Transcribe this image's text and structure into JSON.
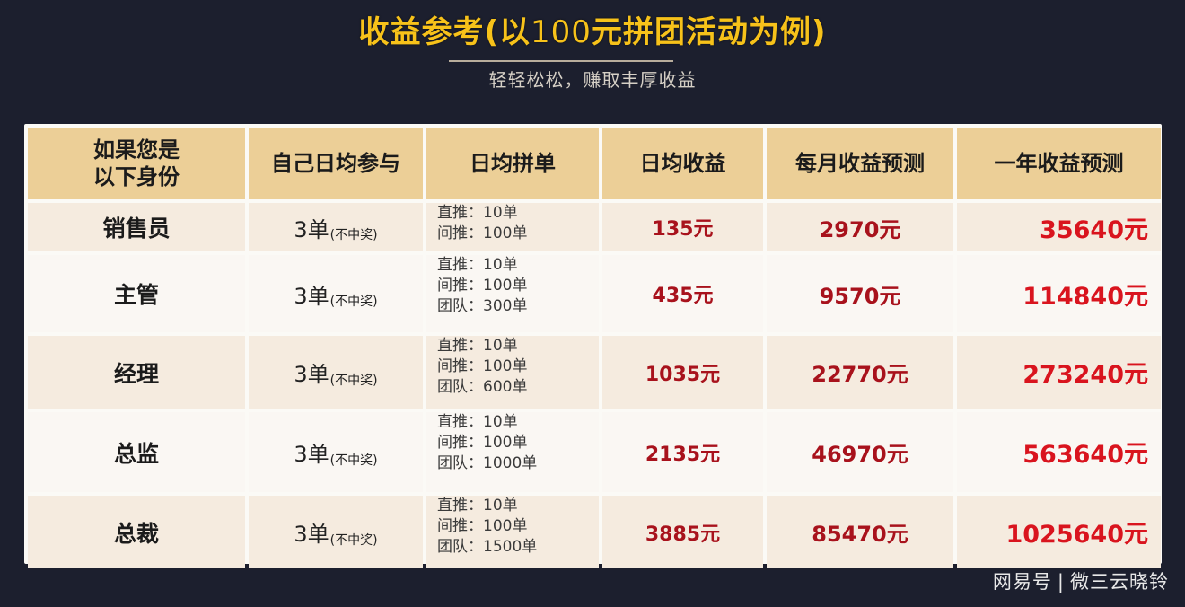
{
  "header": {
    "title_prefix": "收益参考(以",
    "title_number": "100",
    "title_suffix": "元拼团活动为例)",
    "subtitle": "轻轻松松，赚取丰厚收益"
  },
  "table": {
    "columns": [
      "如果您是\n以下身份",
      "自己日均参与",
      "日均拼单",
      "日均收益",
      "每月收益预测",
      "一年收益预测"
    ],
    "column_1_line1": "如果您是",
    "column_1_line2": "以下身份",
    "rows": [
      {
        "role": "销售员",
        "self_orders": "3单",
        "self_note": "(不中奖)",
        "orders": [
          "直推：10单",
          "间推：100单"
        ],
        "daily": "135元",
        "monthly": "2970元",
        "yearly": "35640元"
      },
      {
        "role": "主管",
        "self_orders": "3单",
        "self_note": "(不中奖)",
        "orders": [
          "直推：10单",
          "间推：100单",
          "团队：300单"
        ],
        "daily": "435元",
        "monthly": "9570元",
        "yearly": "114840元"
      },
      {
        "role": "经理",
        "self_orders": "3单",
        "self_note": "(不中奖)",
        "orders": [
          "直推：10单",
          "间推：100单",
          "团队：600单"
        ],
        "daily": "1035元",
        "monthly": "22770元",
        "yearly": "273240元"
      },
      {
        "role": "总监",
        "self_orders": "3单",
        "self_note": "(不中奖)",
        "orders": [
          "直推：10单",
          "间推：100单",
          "团队：1000单"
        ],
        "daily": "2135元",
        "monthly": "46970元",
        "yearly": "563640元"
      },
      {
        "role": "总裁",
        "self_orders": "3单",
        "self_note": "(不中奖)",
        "orders": [
          "直推：10单",
          "间推：100单",
          "团队：1500单"
        ],
        "daily": "3885元",
        "monthly": "85470元",
        "yearly": "1025640元"
      }
    ]
  },
  "watermark": {
    "platform": "网易号",
    "separator": "|",
    "author": "微三云晓铃"
  },
  "colors": {
    "background": "#1c1f2e",
    "title": "#f7c21a",
    "header_cell": "#eccf97",
    "money": "#a8121c",
    "money_yearly": "#d9141e"
  }
}
